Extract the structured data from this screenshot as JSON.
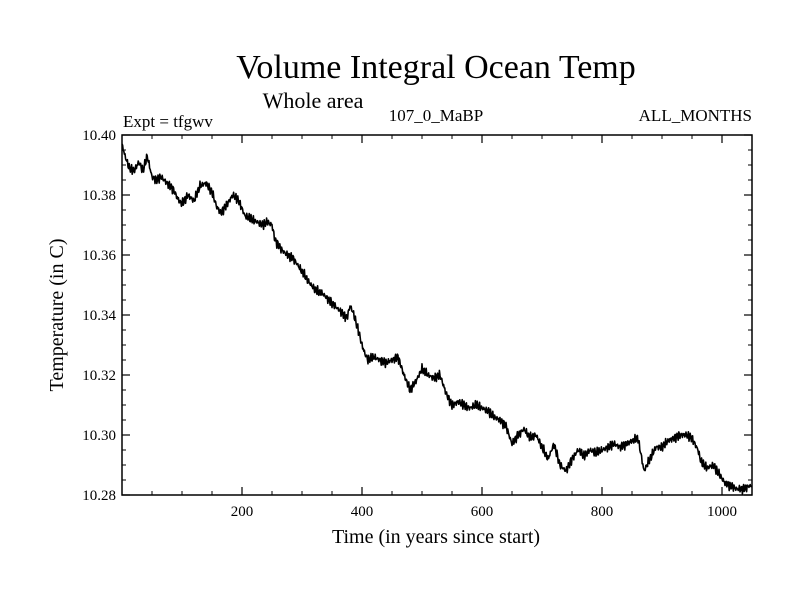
{
  "chart_data": {
    "type": "line",
    "title": "Volume Integral Ocean Temp",
    "subtitle": "Whole area",
    "expt_label": "Expt = tfgwv",
    "run_label": "107_0_MaBP",
    "months_label": "ALL_MONTHS",
    "xlabel": "Time (in years since start)",
    "ylabel": "Temperature (in C)",
    "xlim": [
      0,
      1050
    ],
    "ylim": [
      10.28,
      10.4
    ],
    "x_ticks": [
      200,
      400,
      600,
      800,
      1000
    ],
    "x_tick_labels": [
      "200",
      "400",
      "600",
      "800",
      "1000"
    ],
    "y_ticks": [
      10.28,
      10.3,
      10.32,
      10.34,
      10.36,
      10.38,
      10.4
    ],
    "y_tick_labels": [
      "10.28",
      "10.30",
      "10.32",
      "10.34",
      "10.36",
      "10.38",
      "10.40"
    ],
    "series": [
      {
        "name": "Volume Integral Ocean Temp",
        "color": "#000000",
        "x": [
          0,
          5,
          12,
          20,
          28,
          35,
          42,
          50,
          58,
          65,
          75,
          85,
          95,
          100,
          110,
          120,
          130,
          140,
          150,
          158,
          165,
          175,
          185,
          195,
          205,
          215,
          225,
          235,
          242,
          250,
          255,
          265,
          275,
          285,
          295,
          305,
          315,
          325,
          335,
          345,
          355,
          365,
          375,
          380,
          385,
          395,
          400,
          405,
          410,
          420,
          430,
          440,
          450,
          460,
          470,
          480,
          490,
          500,
          510,
          520,
          530,
          540,
          550,
          560,
          570,
          580,
          590,
          600,
          610,
          620,
          630,
          640,
          650,
          660,
          670,
          680,
          690,
          700,
          710,
          720,
          730,
          740,
          750,
          760,
          770,
          780,
          790,
          800,
          810,
          820,
          830,
          840,
          850,
          860,
          870,
          880,
          890,
          900,
          910,
          920,
          930,
          940,
          950,
          960,
          965,
          975,
          985,
          995,
          1005,
          1015,
          1025,
          1035,
          1045,
          1050
        ],
        "y": [
          10.397,
          10.393,
          10.389,
          10.388,
          10.391,
          10.388,
          10.393,
          10.386,
          10.385,
          10.386,
          10.384,
          10.382,
          10.378,
          10.377,
          10.38,
          10.378,
          10.383,
          10.384,
          10.381,
          10.376,
          10.374,
          10.377,
          10.38,
          10.378,
          10.373,
          10.372,
          10.371,
          10.37,
          10.371,
          10.37,
          10.365,
          10.362,
          10.36,
          10.359,
          10.356,
          10.353,
          10.35,
          10.348,
          10.347,
          10.345,
          10.343,
          10.341,
          10.339,
          10.343,
          10.341,
          10.334,
          10.33,
          10.327,
          10.325,
          10.326,
          10.325,
          10.324,
          10.325,
          10.326,
          10.32,
          10.315,
          10.318,
          10.322,
          10.32,
          10.319,
          10.32,
          10.314,
          10.31,
          10.311,
          10.31,
          10.309,
          10.31,
          10.309,
          10.308,
          10.306,
          10.305,
          10.303,
          10.297,
          10.3,
          10.302,
          10.299,
          10.3,
          10.296,
          10.292,
          10.297,
          10.29,
          10.288,
          10.292,
          10.295,
          10.293,
          10.295,
          10.294,
          10.295,
          10.296,
          10.297,
          10.296,
          10.297,
          10.298,
          10.299,
          10.288,
          10.292,
          10.296,
          10.296,
          10.298,
          10.299,
          10.3,
          10.3,
          10.299,
          10.295,
          10.291,
          10.289,
          10.29,
          10.287,
          10.284,
          10.283,
          10.282,
          10.282,
          10.283,
          10.283
        ]
      }
    ]
  }
}
